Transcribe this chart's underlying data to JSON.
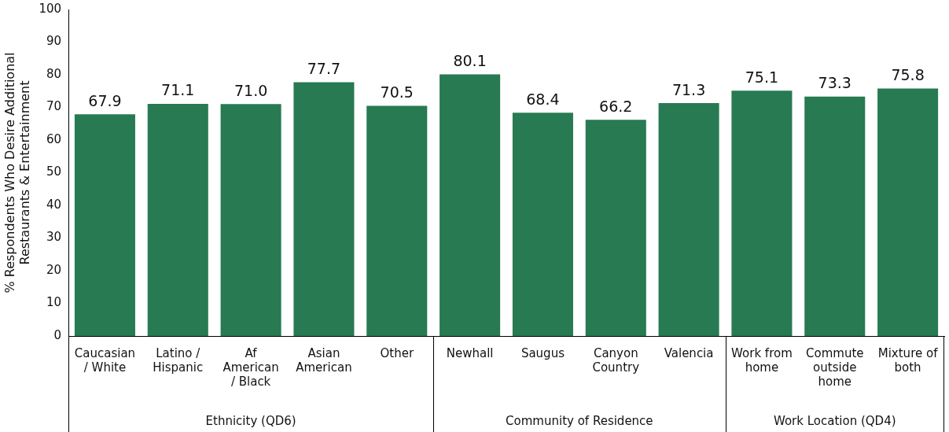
{
  "chart_data": {
    "type": "bar",
    "ylabel": "% Respondents Who Desire Additional Restaurants & Entertainment",
    "categories": [
      "Caucasian / White",
      "Latino / Hispanic",
      "Af American / Black",
      "Asian American",
      "Other",
      "Newhall",
      "Saugus",
      "Canyon Country",
      "Valencia",
      "Work from home",
      "Commute outside home",
      "Mixture of both"
    ],
    "values": [
      67.9,
      71.1,
      71.0,
      77.7,
      70.5,
      80.1,
      68.4,
      66.2,
      71.3,
      75.1,
      73.3,
      75.8
    ],
    "value_labels": [
      "67.9",
      "71.1",
      "71.0",
      "77.7",
      "70.5",
      "80.1",
      "68.4",
      "66.2",
      "71.3",
      "75.1",
      "73.3",
      "75.8"
    ],
    "color": "#277a52",
    "ylim": [
      0,
      100
    ],
    "yticks": [
      0,
      10,
      20,
      30,
      40,
      50,
      60,
      70,
      80,
      90,
      100
    ],
    "grid": false,
    "legend": false,
    "annotations": [
      "Ethnicity (QD6)",
      "Community of Residence",
      "Work Location (QD4)"
    ]
  }
}
